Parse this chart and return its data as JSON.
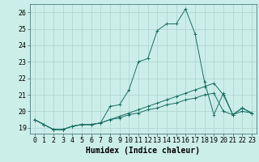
{
  "title": "",
  "xlabel": "Humidex (Indice chaleur)",
  "background_color": "#cceee8",
  "grid_color": "#aad4cc",
  "line_color": "#1a6e64",
  "xlim": [
    -0.5,
    23.5
  ],
  "ylim": [
    18.65,
    26.5
  ],
  "yticks": [
    19,
    20,
    21,
    22,
    23,
    24,
    25,
    26
  ],
  "xticks": [
    0,
    1,
    2,
    3,
    4,
    5,
    6,
    7,
    8,
    9,
    10,
    11,
    12,
    13,
    14,
    15,
    16,
    17,
    18,
    19,
    20,
    21,
    22,
    23
  ],
  "series": [
    [
      19.5,
      19.2,
      18.9,
      18.9,
      19.1,
      19.2,
      19.2,
      19.3,
      20.3,
      20.4,
      21.3,
      23.0,
      23.2,
      24.9,
      25.3,
      25.3,
      26.2,
      24.7,
      21.8,
      19.8,
      21.1,
      19.8,
      20.2,
      19.9
    ],
    [
      19.5,
      19.2,
      18.9,
      18.9,
      19.1,
      19.2,
      19.2,
      19.3,
      19.5,
      19.7,
      19.9,
      20.1,
      20.3,
      20.5,
      20.7,
      20.9,
      21.1,
      21.3,
      21.5,
      21.7,
      21.0,
      19.8,
      20.2,
      19.9
    ],
    [
      19.5,
      19.2,
      18.9,
      18.9,
      19.1,
      19.2,
      19.2,
      19.3,
      19.5,
      19.6,
      19.8,
      19.9,
      20.1,
      20.2,
      20.4,
      20.5,
      20.7,
      20.8,
      21.0,
      21.1,
      20.0,
      19.8,
      20.0,
      19.9
    ]
  ],
  "tick_fontsize": 6.0,
  "xlabel_fontsize": 7.0
}
